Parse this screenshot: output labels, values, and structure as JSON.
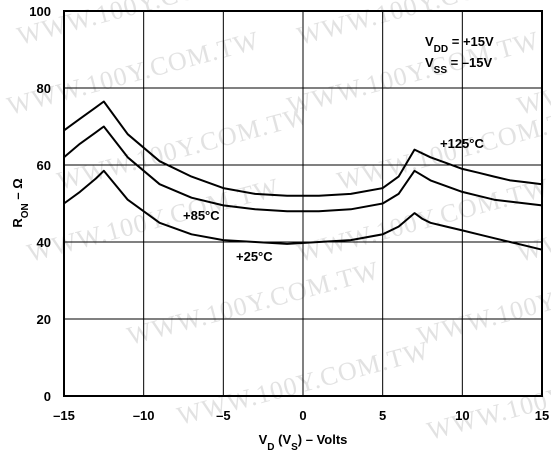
{
  "chart_data": {
    "type": "line",
    "xlabel": "V_D (V_S) – Volts",
    "ylabel": "R_ON – Ω",
    "xlim": [
      -15,
      15
    ],
    "ylim": [
      0,
      100
    ],
    "x_ticks": [
      "–15",
      "–10",
      "–5",
      "0",
      "5",
      "10",
      "15"
    ],
    "y_ticks": [
      "0",
      "20",
      "40",
      "60",
      "80",
      "100"
    ],
    "grid": true,
    "supply_conditions": [
      "V_DD = +15V",
      "V_SS = –15V"
    ],
    "watermark": "WWW.100Y.COM.TW",
    "series": [
      {
        "name": "+125°C",
        "x": [
          -15,
          -14,
          -13,
          -12.5,
          -11,
          -9,
          -7,
          -5,
          -3,
          -1,
          1,
          3,
          5,
          6,
          7,
          8,
          9,
          10,
          11,
          12,
          13,
          14,
          15
        ],
        "y": [
          69,
          72,
          75,
          76.5,
          68,
          61,
          57,
          54,
          52.5,
          52,
          52,
          52.5,
          54,
          57,
          64,
          62,
          60.5,
          59,
          58,
          57,
          56,
          55.5,
          55
        ]
      },
      {
        "name": "+85°C",
        "x": [
          -15,
          -14,
          -13,
          -12.5,
          -11,
          -9,
          -7,
          -5,
          -3,
          -1,
          1,
          3,
          5,
          6,
          7,
          8,
          9,
          10,
          11,
          12,
          13,
          14,
          15
        ],
        "y": [
          62,
          65.5,
          68.5,
          70,
          62,
          55,
          51.5,
          49.5,
          48.5,
          48,
          48,
          48.5,
          50,
          52.5,
          58.5,
          56,
          54.5,
          53,
          52,
          51,
          50.5,
          50,
          49.5
        ]
      },
      {
        "name": "+25°C",
        "x": [
          -15,
          -14,
          -13,
          -12.5,
          -11,
          -9,
          -7,
          -5,
          -3,
          -1,
          1,
          3,
          5,
          6,
          7,
          7.5,
          8,
          9,
          10,
          11,
          12,
          13,
          14,
          15
        ],
        "y": [
          50,
          53,
          56.5,
          58.5,
          51,
          45,
          42,
          40.5,
          40,
          39.5,
          40,
          40.5,
          42,
          44,
          47.5,
          46,
          45,
          44,
          43,
          42,
          41,
          40,
          39,
          38
        ]
      }
    ]
  }
}
